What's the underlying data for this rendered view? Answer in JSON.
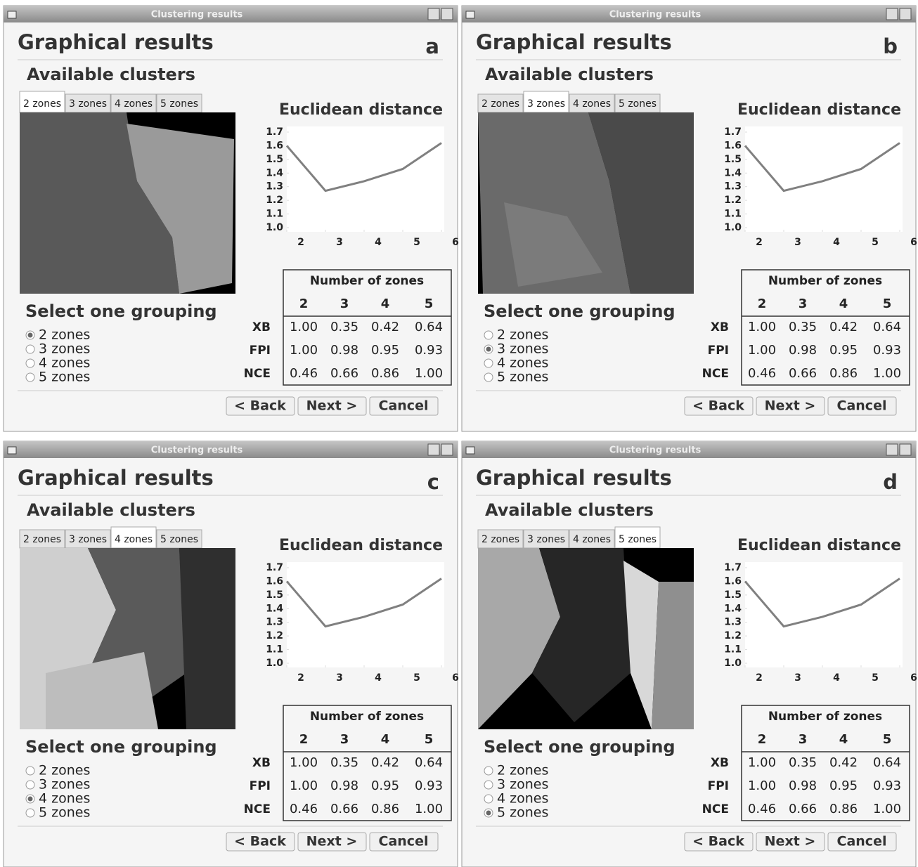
{
  "window": {
    "title": "Clustering results",
    "heading": "Graphical results",
    "subheading": "Available clusters",
    "tabs": [
      "2 zones",
      "3 zones",
      "4 zones",
      "5 zones"
    ],
    "select_heading": "Select one grouping",
    "options": [
      "2 zones",
      "3 zones",
      "4 zones",
      "5 zones"
    ],
    "buttons": [
      "< Back",
      "Next >",
      "Cancel"
    ],
    "table": {
      "header": "Number of zones",
      "columns": [
        "2",
        "3",
        "4",
        "5"
      ],
      "rows": [
        {
          "label": "XB",
          "cells": [
            "1.00",
            "0.35",
            "0.42",
            "0.64"
          ]
        },
        {
          "label": "FPI",
          "cells": [
            "1.00",
            "0.98",
            "0.95",
            "0.93"
          ]
        },
        {
          "label": "NCE",
          "cells": [
            "0.46",
            "0.66",
            "0.86",
            "1.00"
          ]
        }
      ]
    }
  },
  "chart_data": {
    "type": "line",
    "title": "Euclidean distance",
    "x": [
      2,
      3,
      4,
      5,
      6
    ],
    "values": [
      1.6,
      1.27,
      1.34,
      1.43,
      1.62
    ],
    "color": "#808080",
    "xlim": [
      2,
      6
    ],
    "ylim": [
      1,
      1.7
    ],
    "xticks": [
      2,
      3,
      4,
      5,
      6
    ],
    "yticks": [
      {
        "value": 1,
        "label": "1.0"
      },
      1.1,
      1.2,
      1.3,
      1.4,
      1.5,
      1.6,
      1.7
    ]
  },
  "panels": [
    {
      "label": "a",
      "selected": 0
    },
    {
      "label": "b",
      "selected": 1
    },
    {
      "label": "c",
      "selected": 2
    },
    {
      "label": "d",
      "selected": 3
    }
  ]
}
